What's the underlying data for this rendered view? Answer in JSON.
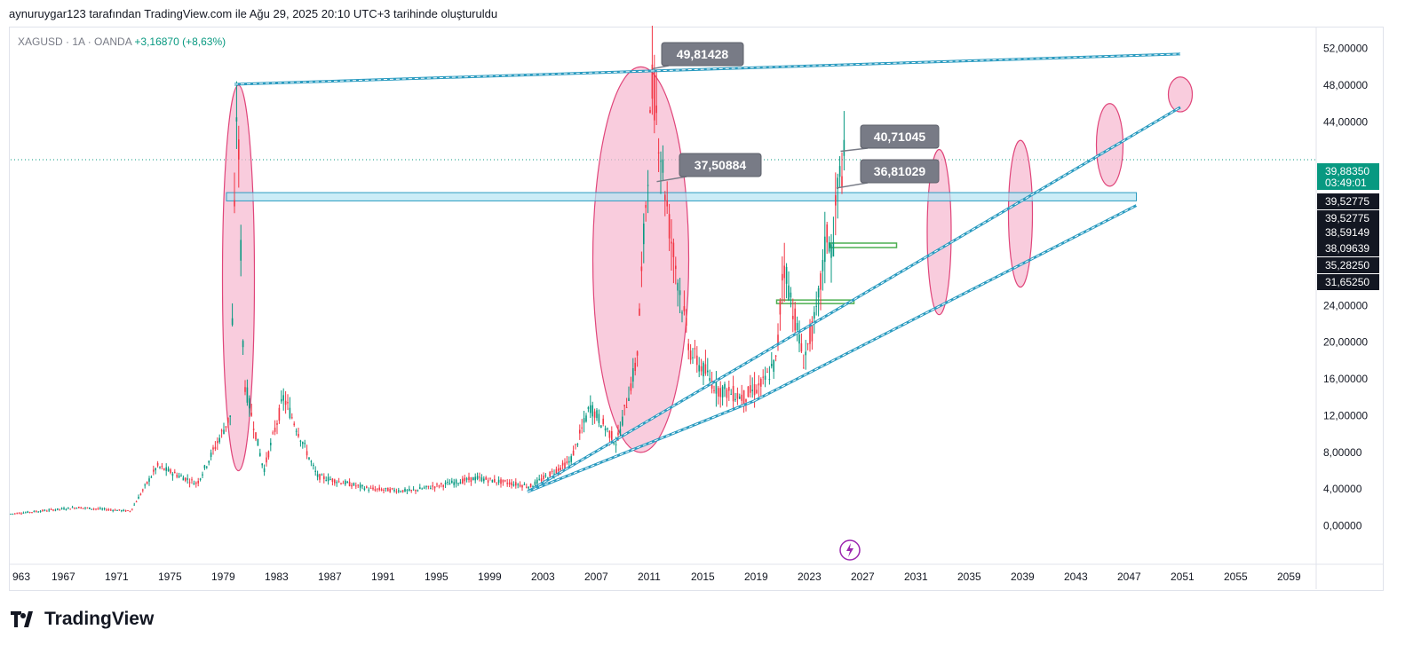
{
  "header": {
    "caption": "aynuruygar123 tarafından TradingView.com ile Ağu 29, 2025 20:10 UTC+3 tarihinde oluşturuldu"
  },
  "symbol": {
    "name": "XAGUSD · 1A · OANDA",
    "change": "+3,16870 (+8,63%)"
  },
  "branding": {
    "logo_text": "TradingView",
    "icon": "tradingview-logo-icon"
  },
  "colors": {
    "up": "#089981",
    "down": "#f23645",
    "trendline": "#2a9bc0",
    "ellipse_fill": "#f7b7cf",
    "ellipse_stroke": "#e0457a",
    "zone": "#b5e6f4",
    "green_box": "#4caf50",
    "callout": "#787b86",
    "last_price": "#089981",
    "label_dark": "#131722"
  },
  "chart_data": {
    "type": "candlestick",
    "title": "XAGUSD · 1A · OANDA",
    "x_ticks": [
      "963",
      "1967",
      "1971",
      "1975",
      "1979",
      "1983",
      "1987",
      "1991",
      "1995",
      "1999",
      "2003",
      "2007",
      "2011",
      "2015",
      "2019",
      "2023",
      "2027",
      "2031",
      "2035",
      "2039",
      "2043",
      "2047",
      "2051",
      "2055",
      "2059"
    ],
    "y_ticks": [
      "52,00000",
      "48,00000",
      "44,00000",
      "24,00000",
      "20,00000",
      "16,00000",
      "12,00000",
      "8,00000",
      "4,00000",
      "0,00000"
    ],
    "ylim": [
      -4,
      54
    ],
    "xlim": [
      1963,
      2061
    ],
    "log_scale": false,
    "grid": false,
    "series": [
      {
        "name": "XAGUSD",
        "x": [
          1963,
          1968,
          1972,
          1974,
          1977,
          1979.5,
          1980.0,
          1980.5,
          1982,
          1983.5,
          1986,
          1990,
          1993,
          1998,
          2002,
          2005,
          2006.5,
          2008.5,
          2010,
          2011.2,
          2012.5,
          2014,
          2016,
          2018,
          2019.5,
          2020.5,
          2021,
          2022.5,
          2023.5,
          2024.3,
          2024.7,
          2025.0,
          2025.3,
          2025.6
        ],
        "values": [
          1.3,
          2.0,
          1.6,
          6.5,
          4.6,
          12,
          48,
          16,
          6.0,
          14.0,
          5.4,
          4.0,
          3.8,
          5.2,
          4.3,
          7.0,
          13.0,
          9.0,
          18.0,
          48.5,
          32.0,
          19.0,
          15.0,
          14.0,
          15.5,
          18.0,
          29.0,
          18.0,
          23.0,
          32.0,
          29.5,
          36.0,
          38.5,
          39.88
        ]
      }
    ],
    "annotations": [
      "49,81428",
      "37,50884",
      "40,71045",
      "36,81029"
    ],
    "price_labels": [
      {
        "text": "39,88350",
        "sub": "03:49:01",
        "kind": "last",
        "value": 39.8835
      },
      {
        "text": "39,52775",
        "kind": "dark",
        "value": 39.52775
      },
      {
        "text": "39,52775",
        "kind": "dark",
        "value": 39.52775
      },
      {
        "text": "38,59149",
        "kind": "dark",
        "value": 38.59149
      },
      {
        "text": "38,09639",
        "kind": "dark",
        "value": 38.09639
      },
      {
        "text": "35,28250",
        "kind": "dark",
        "value": 35.2825
      },
      {
        "text": "31,65250",
        "kind": "dark",
        "value": 31.6525
      }
    ]
  }
}
